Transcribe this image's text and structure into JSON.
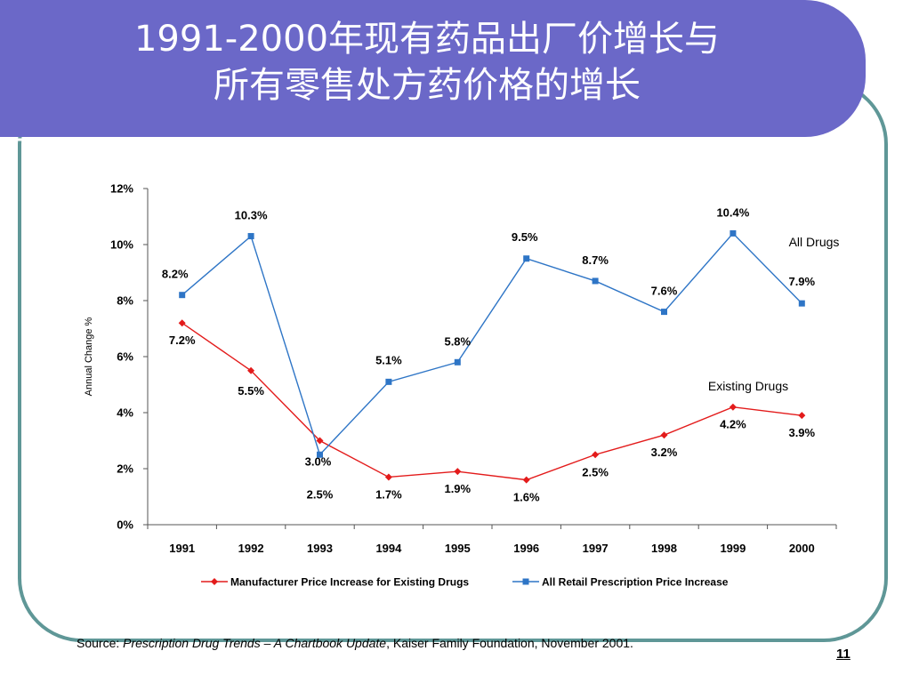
{
  "slide": {
    "title_line1": "1991-2000年现有药品出厂价增长与",
    "title_line2": "所有零售处方药价格的增长",
    "source_prefix": "Source: ",
    "source_title": "Prescription Drug Trends – A Chartbook Update",
    "source_suffix": ", Kaiser Family Foundation, November 2001.",
    "page_number": "11",
    "colors": {
      "banner": "#6B68C8",
      "frame": "#5F9797"
    }
  },
  "chart_data": {
    "type": "line",
    "categories": [
      "1991",
      "1992",
      "1993",
      "1994",
      "1995",
      "1996",
      "1997",
      "1998",
      "1999",
      "2000"
    ],
    "ylabel": "Annual Change %",
    "ylim": [
      0,
      12
    ],
    "yticks": [
      "0%",
      "2%",
      "4%",
      "6%",
      "8%",
      "10%",
      "12%"
    ],
    "grid": false,
    "legend_position": "bottom",
    "series": [
      {
        "name": "Manufacturer Price Increase for Existing Drugs",
        "color": "#E31B1B",
        "marker": "diamond",
        "values": [
          7.2,
          5.5,
          3.0,
          1.7,
          1.9,
          1.6,
          2.5,
          3.2,
          4.2,
          3.9
        ],
        "labels": [
          "7.2%",
          "5.5%",
          "3.0%",
          "1.7%",
          "1.9%",
          "1.6%",
          "2.5%",
          "3.2%",
          "4.2%",
          "3.9%"
        ]
      },
      {
        "name": "All Retail Prescription Price Increase",
        "color": "#2E75C6",
        "marker": "square",
        "values": [
          8.2,
          10.3,
          2.5,
          5.1,
          5.8,
          9.5,
          8.7,
          7.6,
          10.4,
          7.9
        ],
        "labels": [
          "8.2%",
          "10.3%",
          "2.5%",
          "5.1%",
          "5.8%",
          "9.5%",
          "8.7%",
          "7.6%",
          "10.4%",
          "7.9%"
        ]
      }
    ],
    "annotations": [
      "All Drugs",
      "Existing Drugs"
    ]
  }
}
